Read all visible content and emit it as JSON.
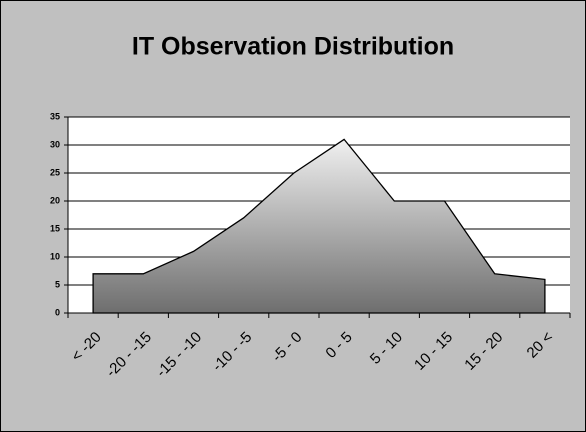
{
  "chart_data": {
    "type": "area",
    "title": "IT Observation Distribution",
    "categories": [
      "< -20",
      "-20 - -15",
      "-15 - -10",
      "-10 - -5",
      "-5 - 0",
      "0 - 5",
      "5 - 10",
      "10 - 15",
      "15 - 20",
      "20 <"
    ],
    "values": [
      7,
      7,
      11,
      17,
      25,
      31,
      20,
      20,
      7,
      6
    ],
    "ylim": [
      0,
      35
    ],
    "yticks": [
      0,
      5,
      10,
      15,
      20,
      25,
      30,
      35
    ],
    "grid": true
  }
}
